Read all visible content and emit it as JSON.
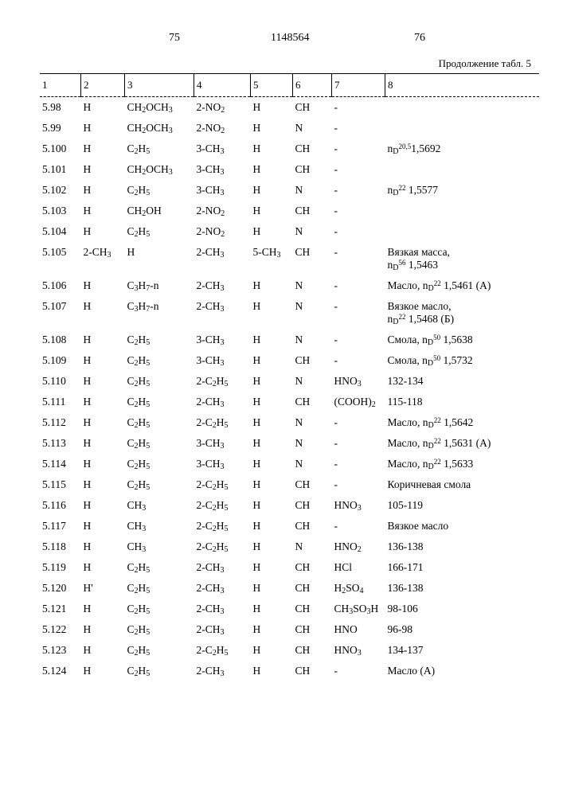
{
  "header": {
    "page_left": "75",
    "doc_no": "1148564",
    "page_right": "76",
    "continuation": "Продолжение табл. 5"
  },
  "columns": [
    "1",
    "2",
    "3",
    "4",
    "5",
    "6",
    "7",
    "8"
  ],
  "rows": [
    {
      "n": "5.98",
      "c2": "H",
      "c3": "CH<sub>2</sub>OCH<sub>3</sub>",
      "c4": "2-NO<sub>2</sub>",
      "c5": "H",
      "c6": "CH",
      "c7": "-",
      "c8": ""
    },
    {
      "n": "5.99",
      "c2": "H",
      "c3": "CH<sub>2</sub>OCH<sub>3</sub>",
      "c4": "2-NO<sub>2</sub>",
      "c5": "H",
      "c6": "N",
      "c7": "-",
      "c8": ""
    },
    {
      "n": "5.100",
      "c2": "H",
      "c3": "C<sub>2</sub>H<sub>5</sub>",
      "c4": "3-CH<sub>3</sub>",
      "c5": "H",
      "c6": "CH",
      "c7": "-",
      "c8": "n<sub>D</sub><sup>20,5</sup>1,5692"
    },
    {
      "n": "5.101",
      "c2": "H",
      "c3": "CH<sub>2</sub>OCH<sub>3</sub>",
      "c4": "3-CH<sub>3</sub>",
      "c5": "H",
      "c6": "CH",
      "c7": "-",
      "c8": ""
    },
    {
      "n": "5.102",
      "c2": "H",
      "c3": "C<sub>2</sub>H<sub>5</sub>",
      "c4": "3-CH<sub>3</sub>",
      "c5": "H",
      "c6": "N",
      "c7": "-",
      "c8": "n<sub>D</sub><sup>22</sup> 1,5577"
    },
    {
      "n": "5.103",
      "c2": "H",
      "c3": "CH<sub>2</sub>OH",
      "c4": "2-NO<sub>2</sub>",
      "c5": "H",
      "c6": "CH",
      "c7": "-",
      "c8": ""
    },
    {
      "n": "5.104",
      "c2": "H",
      "c3": "C<sub>2</sub>H<sub>5</sub>",
      "c4": "2-NO<sub>2</sub>",
      "c5": "H",
      "c6": "N",
      "c7": "-",
      "c8": ""
    },
    {
      "n": "5.105",
      "c2": "2-CH<sub>3</sub>",
      "c3": "H",
      "c4": "2-CH<sub>3</sub>",
      "c5": "5-CH<sub>3</sub>",
      "c6": "CH",
      "c7": "-",
      "c8": "Вязкая масса,<br>n<sub>D</sub><sup>56</sup> 1,5463"
    },
    {
      "n": "5.106",
      "c2": "H",
      "c3": "C<sub>3</sub>H<sub>7</sub>-n",
      "c4": "2-CH<sub>3</sub>",
      "c5": "H",
      "c6": "N",
      "c7": "-",
      "c8": "Масло, n<sub>D</sub><sup>22</sup> 1,5461 (А)"
    },
    {
      "n": "5.107",
      "c2": "H",
      "c3": "C<sub>3</sub>H<sub>7</sub>-n",
      "c4": "2-CH<sub>3</sub>",
      "c5": "H",
      "c6": "N",
      "c7": "-",
      "c8": "Вязкое масло,<br>n<sub>D</sub><sup>22</sup> 1,5468 (Б)"
    },
    {
      "n": "5.108",
      "c2": "H",
      "c3": "C<sub>2</sub>H<sub>5</sub>",
      "c4": "3-CH<sub>3</sub>",
      "c5": "H",
      "c6": "N",
      "c7": "-",
      "c8": "Смола, n<sub>D</sub><sup>50</sup> 1,5638"
    },
    {
      "n": "5.109",
      "c2": "H",
      "c3": "C<sub>2</sub>H<sub>5</sub>",
      "c4": "3-CH<sub>3</sub>",
      "c5": "H",
      "c6": "CH",
      "c7": "-",
      "c8": "Смола, n<sub>D</sub><sup>50</sup> 1,5732"
    },
    {
      "n": "5.110",
      "c2": "H",
      "c3": "C<sub>2</sub>H<sub>5</sub>",
      "c4": "2-C<sub>2</sub>H<sub>5</sub>",
      "c5": "H",
      "c6": "N",
      "c7": "HNO<sub>3</sub>",
      "c8": "132-134"
    },
    {
      "n": "5.111",
      "c2": "H",
      "c3": "C<sub>2</sub>H<sub>5</sub>",
      "c4": "2-CH<sub>3</sub>",
      "c5": "H",
      "c6": "CH",
      "c7": "(COOH)<sub>2</sub>",
      "c8": "115-118"
    },
    {
      "n": "5.112",
      "c2": "H",
      "c3": "C<sub>2</sub>H<sub>5</sub>",
      "c4": "2-C<sub>2</sub>H<sub>5</sub>",
      "c5": "H",
      "c6": "N",
      "c7": "-",
      "c8": "Масло, n<sub>D</sub><sup>22</sup> 1,5642"
    },
    {
      "n": "5.113",
      "c2": "H",
      "c3": "C<sub>2</sub>H<sub>5</sub>",
      "c4": "3-CH<sub>3</sub>",
      "c5": "H",
      "c6": "N",
      "c7": "-",
      "c8": "Масло, n<sub>D</sub><sup>22</sup> 1,5631 (А)"
    },
    {
      "n": "5.114",
      "c2": "H",
      "c3": "C<sub>2</sub>H<sub>5</sub>",
      "c4": "3-CH<sub>3</sub>",
      "c5": "H",
      "c6": "N",
      "c7": "-",
      "c8": "Масло, n<sub>D</sub><sup>22</sup> 1,5633"
    },
    {
      "n": "5.115",
      "c2": "H",
      "c3": "C<sub>2</sub>H<sub>5</sub>",
      "c4": "2-C<sub>2</sub>H<sub>5</sub>",
      "c5": "H",
      "c6": "CH",
      "c7": "-",
      "c8": "Коричневая смола"
    },
    {
      "n": "5.116",
      "c2": "H",
      "c3": "CH<sub>3</sub>",
      "c4": "2-C<sub>2</sub>H<sub>5</sub>",
      "c5": "H",
      "c6": "CH",
      "c7": "HNO<sub>3</sub>",
      "c8": "105-119"
    },
    {
      "n": "5.117",
      "c2": "H",
      "c3": "CH<sub>3</sub>",
      "c4": "2-C<sub>2</sub>H<sub>5</sub>",
      "c5": "H",
      "c6": "CH",
      "c7": "-",
      "c8": "Вязкое масло"
    },
    {
      "n": "5.118",
      "c2": "H",
      "c3": "CH<sub>3</sub>",
      "c4": "2-C<sub>2</sub>H<sub>5</sub>",
      "c5": "H",
      "c6": "N",
      "c7": "HNO<sub>2</sub>",
      "c8": "136-138"
    },
    {
      "n": "5.119",
      "c2": "H",
      "c3": "C<sub>2</sub>H<sub>5</sub>",
      "c4": "2-CH<sub>3</sub>",
      "c5": "H",
      "c6": "CH",
      "c7": "HCl",
      "c8": "166-171"
    },
    {
      "n": "5.120",
      "c2": "H'",
      "c3": "C<sub>2</sub>H<sub>5</sub>",
      "c4": "2-CH<sub>3</sub>",
      "c5": "H",
      "c6": "CH",
      "c7": "H<sub>2</sub>SO<sub>4</sub>",
      "c8": "136-138"
    },
    {
      "n": "5.121",
      "c2": "H",
      "c3": "C<sub>2</sub>H<sub>5</sub>",
      "c4": "2-CH<sub>3</sub>",
      "c5": "H",
      "c6": "CH",
      "c7": "CH<sub>3</sub>SO<sub>3</sub>H",
      "c8": "98-106"
    },
    {
      "n": "5.122",
      "c2": "H",
      "c3": "C<sub>2</sub>H<sub>5</sub>",
      "c4": "2-CH<sub>3</sub>",
      "c5": "H",
      "c6": "CH",
      "c7": "HNO",
      "c8": "96-98"
    },
    {
      "n": "5.123",
      "c2": "H",
      "c3": "C<sub>2</sub>H<sub>5</sub>",
      "c4": "2-C<sub>2</sub>H<sub>5</sub>",
      "c5": "H",
      "c6": "CH",
      "c7": "HNO<sub>3</sub>",
      "c8": "134-137"
    },
    {
      "n": "5.124",
      "c2": "H",
      "c3": "C<sub>2</sub>H<sub>5</sub>",
      "c4": "2-CH<sub>3</sub>",
      "c5": "H",
      "c6": "CH",
      "c7": "-",
      "c8": "Масло (А)"
    }
  ]
}
